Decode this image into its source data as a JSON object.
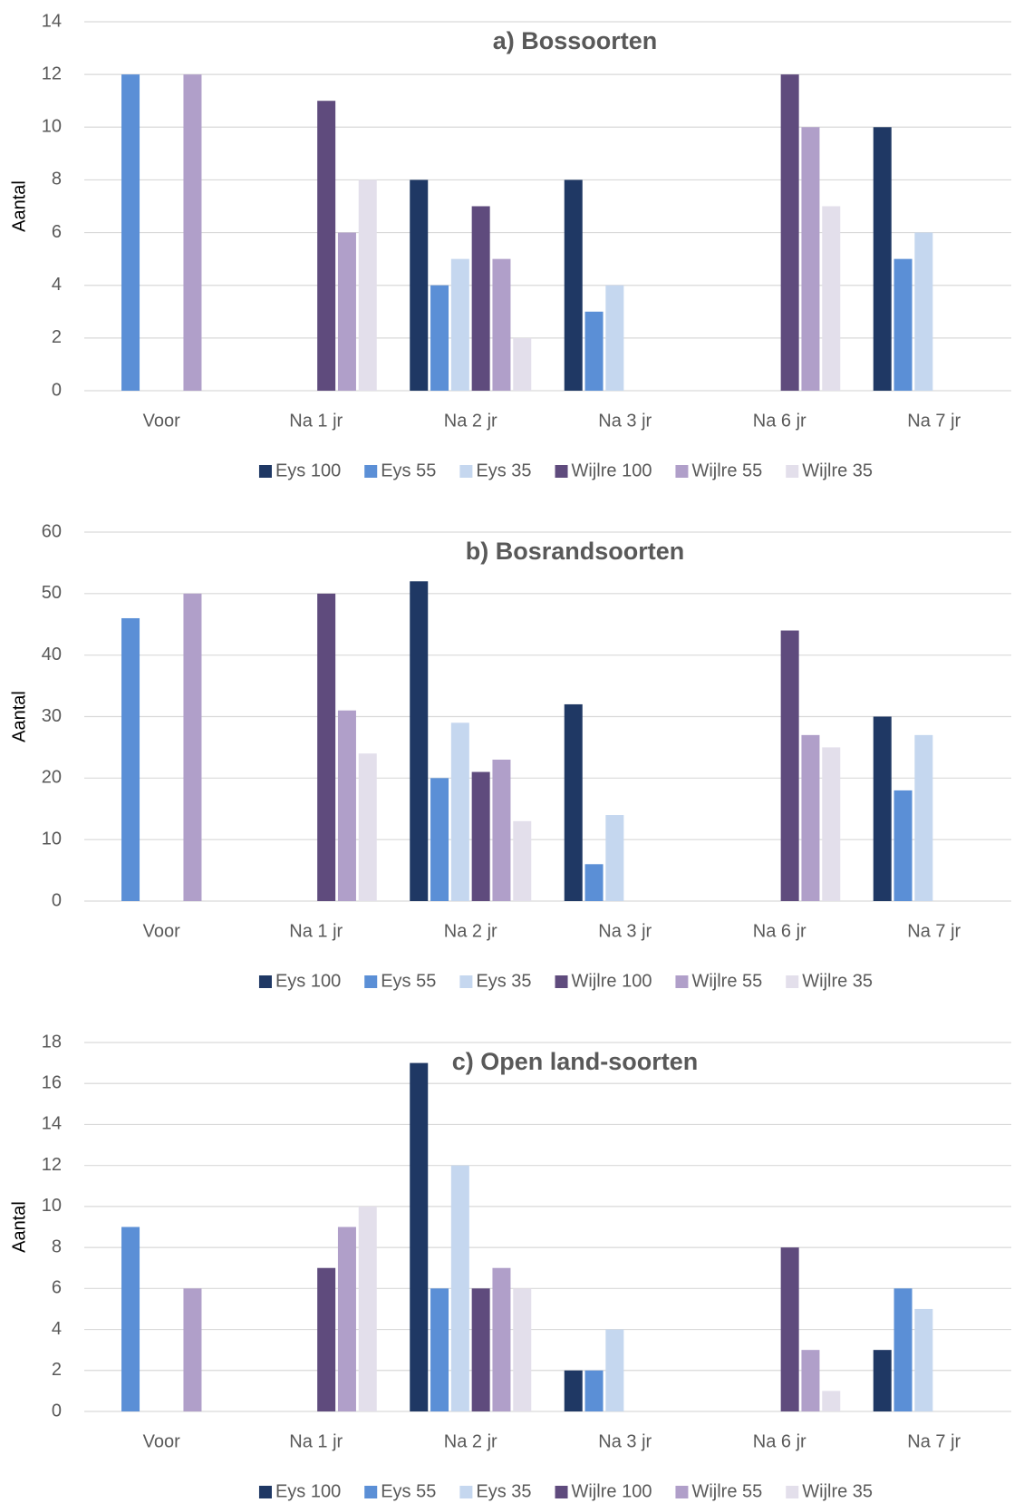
{
  "chart_data": [
    {
      "type": "bar",
      "title": "a) Bossoorten",
      "y_label": "Aantal",
      "categories": [
        "Voor",
        "Na 1 jr",
        "Na 2 jr",
        "Na 3 jr",
        "Na 6 jr",
        "Na 7 jr"
      ],
      "ylim": [
        0,
        14
      ],
      "yticks": [
        0,
        2,
        4,
        6,
        8,
        10,
        12,
        14
      ],
      "grid": true,
      "legend": "bottom",
      "series": [
        {
          "name": "Eys 100",
          "color": "#1f3864",
          "values": [
            null,
            null,
            8,
            8,
            null,
            10
          ]
        },
        {
          "name": "Eys 55",
          "color": "#5b8fd6",
          "values": [
            12,
            null,
            4,
            3,
            null,
            5
          ]
        },
        {
          "name": "Eys 35",
          "color": "#c5d7ef",
          "values": [
            null,
            null,
            5,
            4,
            null,
            6
          ]
        },
        {
          "name": "Wijlre 100",
          "color": "#5f4b7d",
          "values": [
            null,
            11,
            7,
            null,
            12,
            null
          ]
        },
        {
          "name": "Wijlre 55",
          "color": "#b09fc9",
          "values": [
            12,
            6,
            5,
            null,
            10,
            null
          ]
        },
        {
          "name": "Wijlre 35",
          "color": "#e3dfeb",
          "values": [
            null,
            8,
            2,
            null,
            7,
            null
          ]
        }
      ]
    },
    {
      "type": "bar",
      "title": "b) Bosrandsoorten",
      "y_label": "Aantal",
      "categories": [
        "Voor",
        "Na 1 jr",
        "Na 2 jr",
        "Na 3 jr",
        "Na 6 jr",
        "Na 7 jr"
      ],
      "ylim": [
        0,
        60
      ],
      "yticks": [
        0,
        10,
        20,
        30,
        40,
        50,
        60
      ],
      "grid": true,
      "legend": "bottom",
      "series": [
        {
          "name": "Eys 100",
          "color": "#1f3864",
          "values": [
            null,
            null,
            52,
            32,
            null,
            30
          ]
        },
        {
          "name": "Eys 55",
          "color": "#5b8fd6",
          "values": [
            46,
            null,
            20,
            6,
            null,
            18
          ]
        },
        {
          "name": "Eys 35",
          "color": "#c5d7ef",
          "values": [
            null,
            null,
            29,
            14,
            null,
            27
          ]
        },
        {
          "name": "Wijlre 100",
          "color": "#5f4b7d",
          "values": [
            null,
            50,
            21,
            null,
            44,
            null
          ]
        },
        {
          "name": "Wijlre 55",
          "color": "#b09fc9",
          "values": [
            50,
            31,
            23,
            null,
            27,
            null
          ]
        },
        {
          "name": "Wijlre 35",
          "color": "#e3dfeb",
          "values": [
            null,
            24,
            13,
            null,
            25,
            null
          ]
        }
      ]
    },
    {
      "type": "bar",
      "title": "c) Open land-soorten",
      "y_label": "Aantal",
      "categories": [
        "Voor",
        "Na 1 jr",
        "Na 2 jr",
        "Na 3 jr",
        "Na 6 jr",
        "Na 7 jr"
      ],
      "ylim": [
        0,
        18
      ],
      "yticks": [
        0,
        2,
        4,
        6,
        8,
        10,
        12,
        14,
        16,
        18
      ],
      "grid": true,
      "legend": "bottom",
      "series": [
        {
          "name": "Eys 100",
          "color": "#1f3864",
          "values": [
            null,
            null,
            17,
            2,
            null,
            3
          ]
        },
        {
          "name": "Eys 55",
          "color": "#5b8fd6",
          "values": [
            9,
            null,
            6,
            2,
            null,
            6
          ]
        },
        {
          "name": "Eys 35",
          "color": "#c5d7ef",
          "values": [
            null,
            null,
            12,
            4,
            null,
            5
          ]
        },
        {
          "name": "Wijlre 100",
          "color": "#5f4b7d",
          "values": [
            null,
            7,
            6,
            null,
            8,
            null
          ]
        },
        {
          "name": "Wijlre 55",
          "color": "#b09fc9",
          "values": [
            6,
            9,
            7,
            null,
            3,
            null
          ]
        },
        {
          "name": "Wijlre 35",
          "color": "#e3dfeb",
          "values": [
            null,
            10,
            6,
            null,
            1,
            null
          ]
        }
      ]
    }
  ]
}
